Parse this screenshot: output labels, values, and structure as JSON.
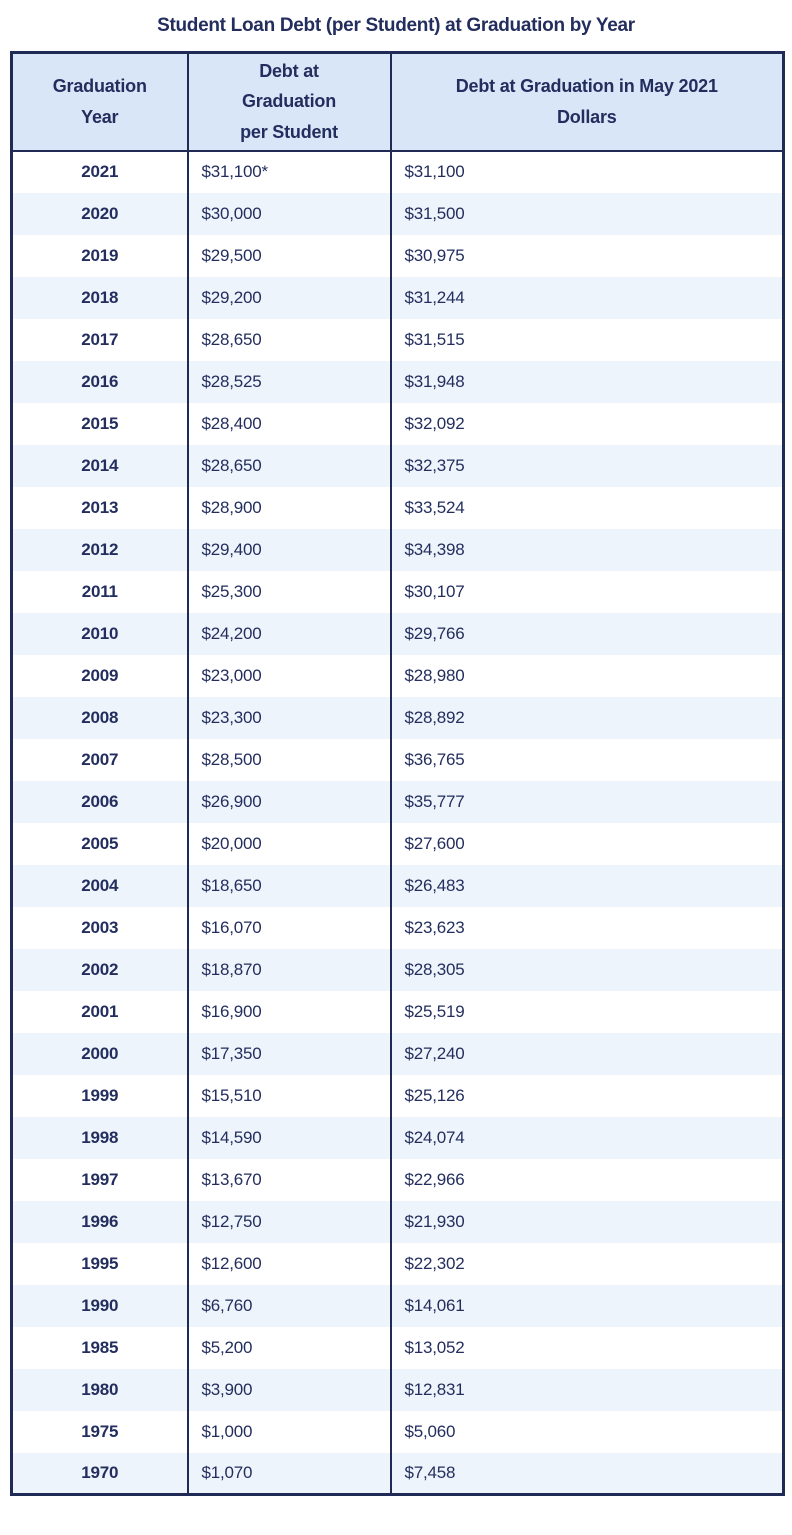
{
  "page": {
    "title": "Student Loan Debt (per Student) at Graduation by Year"
  },
  "colors": {
    "navy_text": "#232e5e",
    "table_border": "#1f2a55",
    "header_bg": "#d9e6f8",
    "alt_row_bg": "#eef4fb",
    "row_bg": "#ffffff"
  },
  "chart_data": {
    "type": "table",
    "title": "Student Loan Debt (per Student) at Graduation by Year",
    "columns": [
      "Graduation\nYear",
      "Debt at\nGraduation\nper Student",
      "Debt at Graduation in May 2021\nDollars"
    ],
    "rows": [
      [
        "2021",
        "$31,100*",
        "$31,100"
      ],
      [
        "2020",
        "$30,000",
        "$31,500"
      ],
      [
        "2019",
        "$29,500",
        "$30,975"
      ],
      [
        "2018",
        "$29,200",
        "$31,244"
      ],
      [
        "2017",
        "$28,650",
        "$31,515"
      ],
      [
        "2016",
        "$28,525",
        "$31,948"
      ],
      [
        "2015",
        "$28,400",
        "$32,092"
      ],
      [
        "2014",
        "$28,650",
        "$32,375"
      ],
      [
        "2013",
        "$28,900",
        "$33,524"
      ],
      [
        "2012",
        "$29,400",
        "$34,398"
      ],
      [
        "2011",
        "$25,300",
        "$30,107"
      ],
      [
        "2010",
        "$24,200",
        "$29,766"
      ],
      [
        "2009",
        "$23,000",
        "$28,980"
      ],
      [
        "2008",
        "$23,300",
        "$28,892"
      ],
      [
        "2007",
        "$28,500",
        "$36,765"
      ],
      [
        "2006",
        "$26,900",
        "$35,777"
      ],
      [
        "2005",
        "$20,000",
        "$27,600"
      ],
      [
        "2004",
        "$18,650",
        "$26,483"
      ],
      [
        "2003",
        "$16,070",
        "$23,623"
      ],
      [
        "2002",
        "$18,870",
        "$28,305"
      ],
      [
        "2001",
        "$16,900",
        "$25,519"
      ],
      [
        "2000",
        "$17,350",
        "$27,240"
      ],
      [
        "1999",
        "$15,510",
        "$25,126"
      ],
      [
        "1998",
        "$14,590",
        "$24,074"
      ],
      [
        "1997",
        "$13,670",
        "$22,966"
      ],
      [
        "1996",
        "$12,750",
        "$21,930"
      ],
      [
        "1995",
        "$12,600",
        "$22,302"
      ],
      [
        "1990",
        "$6,760",
        "$14,061"
      ],
      [
        "1985",
        "$5,200",
        "$13,052"
      ],
      [
        "1980",
        "$3,900",
        "$12,831"
      ],
      [
        "1975",
        "$1,000",
        "$5,060"
      ],
      [
        "1970",
        "$1,070",
        "$7,458"
      ]
    ]
  }
}
